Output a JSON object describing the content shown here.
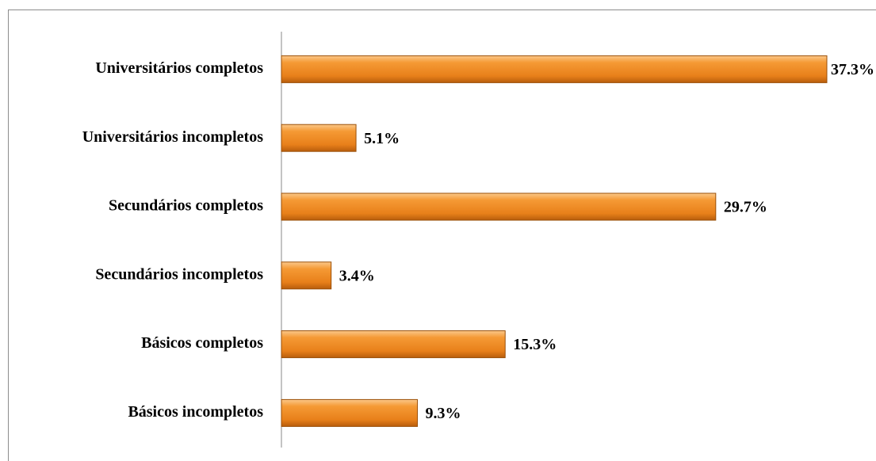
{
  "chart_data": {
    "type": "bar",
    "orientation": "horizontal",
    "categories": [
      "Universitários completos",
      "Universitários incompletos",
      "Secundários completos",
      "Secundários incompletos",
      "Básicos completos",
      "Básicos incompletos"
    ],
    "values": [
      37.3,
      5.1,
      29.7,
      3.4,
      15.3,
      9.3
    ],
    "value_labels": [
      "37.3%",
      "5.1%",
      "29.7%",
      "3.4%",
      "15.3%",
      "9.3%"
    ],
    "color": "#f28c1e"
  }
}
